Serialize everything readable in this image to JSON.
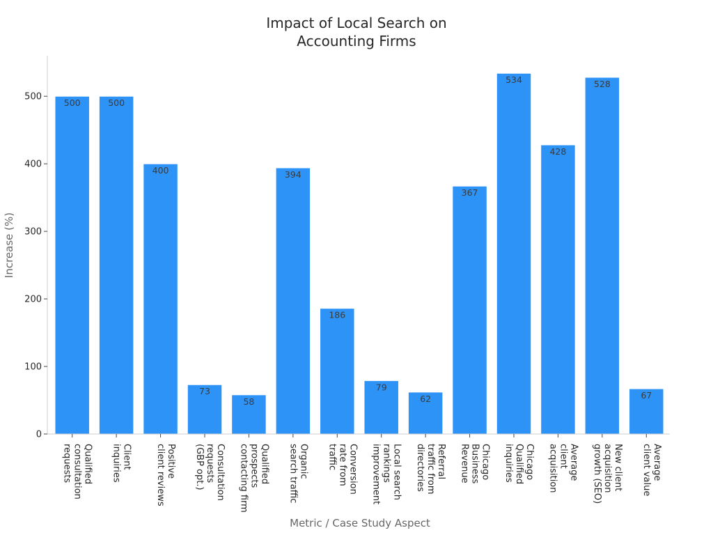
{
  "chart_data": {
    "type": "bar",
    "title_lines": [
      "Impact of Local Search on",
      "Accounting Firms"
    ],
    "xlabel": "Metric / Case Study Aspect",
    "ylabel": "Increase (%)",
    "ylim": [
      0,
      560
    ],
    "yticks": [
      0,
      100,
      200,
      300,
      400,
      500
    ],
    "grid": false,
    "bar_color": "#2e93f7",
    "categories": [
      [
        "Qualified",
        "consultation",
        "requests"
      ],
      [
        "Client",
        "inquiries"
      ],
      [
        "Positive",
        "client reviews"
      ],
      [
        "Consultation",
        "requests",
        "(GBP opt.)"
      ],
      [
        "Qualified",
        "prospects",
        "contacting firm"
      ],
      [
        "Organic",
        "search traffic"
      ],
      [
        "Conversion",
        "rate from",
        "traffic"
      ],
      [
        "Local search",
        "rankings",
        "improvement"
      ],
      [
        "Referral",
        "traffic from",
        "directories"
      ],
      [
        "Chicago",
        "Business",
        "Revenue"
      ],
      [
        "Chicago",
        "Qualified",
        "inquiries"
      ],
      [
        "Average",
        "client",
        "acquisition"
      ],
      [
        "New client",
        "acquisition",
        "growth (SEO)"
      ],
      [
        "Average",
        "client value"
      ]
    ],
    "values": [
      500,
      500,
      400,
      73,
      58,
      394,
      186,
      79,
      62,
      367,
      534,
      428,
      528,
      67
    ]
  }
}
